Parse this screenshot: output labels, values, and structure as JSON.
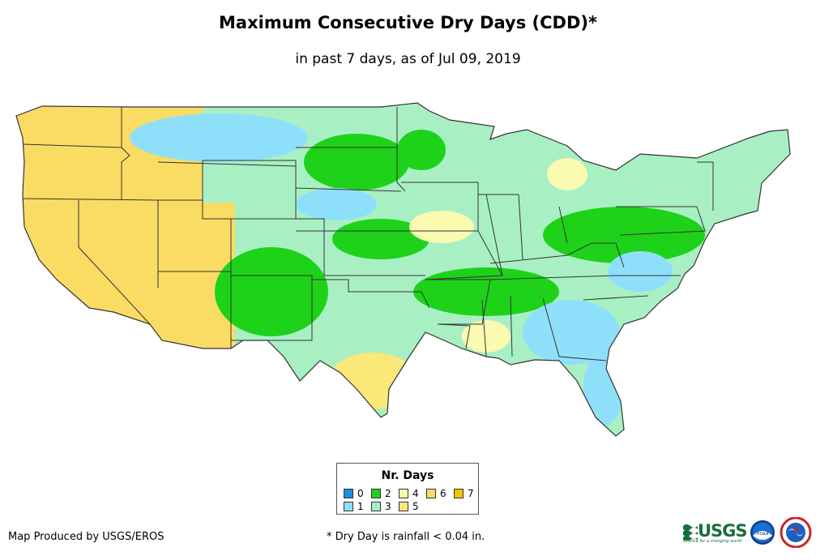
{
  "title": "Maximum Consecutive Dry Days (CDD)*",
  "subtitle": "in past 7 days, as of Jul 09, 2019",
  "legend": {
    "title": "Nr. Days",
    "items": [
      {
        "label": "0",
        "color": "#1a8fe0"
      },
      {
        "label": "1",
        "color": "#8ee0fa"
      },
      {
        "label": "2",
        "color": "#1ed21a"
      },
      {
        "label": "3",
        "color": "#a8f0c4"
      },
      {
        "label": "4",
        "color": "#fafab0"
      },
      {
        "label": "5",
        "color": "#fae878"
      },
      {
        "label": "6",
        "color": "#fadc64"
      },
      {
        "label": "7",
        "color": "#f5c000"
      }
    ]
  },
  "credit": "Map Produced by USGS/EROS",
  "footnote": "* Dry Day is rainfall < 0.04 in.",
  "logos": {
    "usgs_wordmark": "USGS",
    "usgs_tagline": "science for a changing world",
    "noaa_text": "noaa"
  },
  "colors": {
    "state_border": "#333333",
    "background": "#ffffff"
  }
}
